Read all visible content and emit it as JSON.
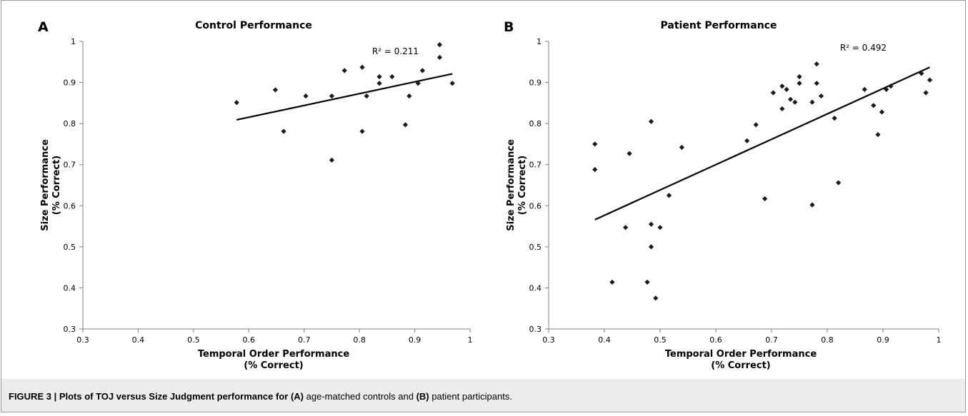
{
  "figure": {
    "caption_label": "FIGURE 3 | Plots of TOJ versus Size Judgment performance for",
    "caption_a": "(A)",
    "caption_mid": "age-matched controls and",
    "caption_b": "(B)",
    "caption_end": "patient participants."
  },
  "chart_data": [
    {
      "type": "scatter",
      "panel_letter": "A",
      "title": "Control Performance",
      "xlabel": [
        "Temporal Order Performance",
        "(% Correct)"
      ],
      "ylabel": [
        "Size Performance",
        "(% Correct)"
      ],
      "xlim": [
        0.3,
        1
      ],
      "ylim": [
        0.3,
        1
      ],
      "xticks": [
        0.3,
        0.4,
        0.5,
        0.6,
        0.7,
        0.8,
        0.9,
        1
      ],
      "yticks": [
        0.3,
        0.4,
        0.5,
        0.6,
        0.7,
        0.8,
        0.9,
        1
      ],
      "xtick_labels": [
        "0.3",
        "0.4",
        "0.5",
        "0.6",
        "0.7",
        "0.8",
        "0.9",
        "1"
      ],
      "ytick_labels": [
        "0.3",
        "0.4",
        "0.5",
        "0.6",
        "0.7",
        "0.8",
        "0.9",
        "1"
      ],
      "grid": false,
      "annotation": "R² = 0.211",
      "trendline": {
        "x": [
          0.578,
          0.968
        ],
        "y": [
          0.809,
          0.921
        ]
      },
      "points": [
        {
          "x": 0.578,
          "y": 0.851
        },
        {
          "x": 0.648,
          "y": 0.882
        },
        {
          "x": 0.663,
          "y": 0.781
        },
        {
          "x": 0.703,
          "y": 0.867
        },
        {
          "x": 0.75,
          "y": 0.867
        },
        {
          "x": 0.75,
          "y": 0.711
        },
        {
          "x": 0.773,
          "y": 0.929
        },
        {
          "x": 0.805,
          "y": 0.937
        },
        {
          "x": 0.805,
          "y": 0.781
        },
        {
          "x": 0.813,
          "y": 0.867
        },
        {
          "x": 0.836,
          "y": 0.914
        },
        {
          "x": 0.836,
          "y": 0.898
        },
        {
          "x": 0.859,
          "y": 0.914
        },
        {
          "x": 0.883,
          "y": 0.797
        },
        {
          "x": 0.89,
          "y": 0.867
        },
        {
          "x": 0.906,
          "y": 0.898
        },
        {
          "x": 0.914,
          "y": 0.929
        },
        {
          "x": 0.945,
          "y": 0.992
        },
        {
          "x": 0.945,
          "y": 0.961
        },
        {
          "x": 0.968,
          "y": 0.898
        }
      ]
    },
    {
      "type": "scatter",
      "panel_letter": "B",
      "title": "Patient Performance",
      "xlabel": [
        "Temporal Order Performance",
        "(% Correct)"
      ],
      "ylabel": [
        "Size Performance",
        "(% Correct)"
      ],
      "xlim": [
        0.3,
        1
      ],
      "ylim": [
        0.3,
        1
      ],
      "xticks": [
        0.3,
        0.4,
        0.5,
        0.6,
        0.7,
        0.8,
        0.9,
        1
      ],
      "yticks": [
        0.3,
        0.4,
        0.5,
        0.6,
        0.7,
        0.8,
        0.9,
        1
      ],
      "xtick_labels": [
        "0.3",
        "0.4",
        "0.5",
        "0.6",
        "0.7",
        "0.8",
        "0.9",
        "1"
      ],
      "ytick_labels": [
        "0.3",
        "0.4",
        "0.5",
        "0.6",
        "0.7",
        "0.8",
        "0.9",
        "1"
      ],
      "grid": false,
      "annotation": "R² = 0.492",
      "trendline": {
        "x": [
          0.383,
          0.984
        ],
        "y": [
          0.566,
          0.937
        ]
      },
      "points": [
        {
          "x": 0.383,
          "y": 0.75
        },
        {
          "x": 0.383,
          "y": 0.688
        },
        {
          "x": 0.414,
          "y": 0.414
        },
        {
          "x": 0.438,
          "y": 0.547
        },
        {
          "x": 0.445,
          "y": 0.727
        },
        {
          "x": 0.477,
          "y": 0.414
        },
        {
          "x": 0.484,
          "y": 0.805
        },
        {
          "x": 0.484,
          "y": 0.555
        },
        {
          "x": 0.484,
          "y": 0.5
        },
        {
          "x": 0.492,
          "y": 0.375
        },
        {
          "x": 0.5,
          "y": 0.547
        },
        {
          "x": 0.516,
          "y": 0.625
        },
        {
          "x": 0.539,
          "y": 0.742
        },
        {
          "x": 0.656,
          "y": 0.758
        },
        {
          "x": 0.672,
          "y": 0.797
        },
        {
          "x": 0.688,
          "y": 0.617
        },
        {
          "x": 0.703,
          "y": 0.875
        },
        {
          "x": 0.719,
          "y": 0.891
        },
        {
          "x": 0.719,
          "y": 0.836
        },
        {
          "x": 0.727,
          "y": 0.883
        },
        {
          "x": 0.734,
          "y": 0.859
        },
        {
          "x": 0.742,
          "y": 0.852
        },
        {
          "x": 0.75,
          "y": 0.914
        },
        {
          "x": 0.75,
          "y": 0.898
        },
        {
          "x": 0.773,
          "y": 0.852
        },
        {
          "x": 0.773,
          "y": 0.602
        },
        {
          "x": 0.781,
          "y": 0.945
        },
        {
          "x": 0.781,
          "y": 0.898
        },
        {
          "x": 0.789,
          "y": 0.867
        },
        {
          "x": 0.813,
          "y": 0.813
        },
        {
          "x": 0.82,
          "y": 0.656
        },
        {
          "x": 0.867,
          "y": 0.883
        },
        {
          "x": 0.883,
          "y": 0.844
        },
        {
          "x": 0.891,
          "y": 0.773
        },
        {
          "x": 0.898,
          "y": 0.828
        },
        {
          "x": 0.906,
          "y": 0.883
        },
        {
          "x": 0.914,
          "y": 0.891
        },
        {
          "x": 0.969,
          "y": 0.922
        },
        {
          "x": 0.977,
          "y": 0.875
        },
        {
          "x": 0.984,
          "y": 0.906
        }
      ]
    }
  ]
}
